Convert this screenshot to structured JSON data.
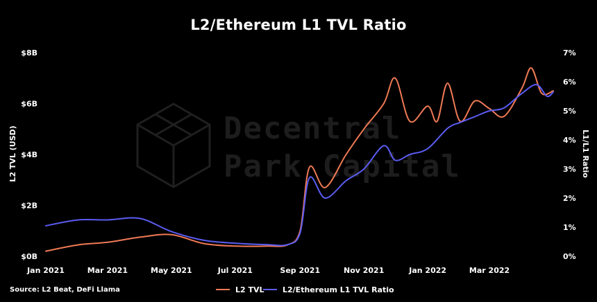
{
  "title": "L2/Ethereum L1 TVL Ratio",
  "source": "Source: L2 Beat, DeFi Llama",
  "watermark": {
    "line1": "Decentral",
    "line2": "Park Capital"
  },
  "colors": {
    "background": "#000000",
    "l2_tvl": "#f07a55",
    "ratio": "#5a5cf2",
    "text": "#ffffff",
    "watermark": "#1d1d1d"
  },
  "chart_data": {
    "type": "line",
    "title": "L2/Ethereum L1 TVL Ratio",
    "xlabel": "",
    "ylabel": "L2 TVL (USD)",
    "y2label": "L1/L1 Ratio",
    "x_ticks": [
      "Jan 2021",
      "Mar 2021",
      "May 2021",
      "Jul 2021",
      "Sep 2021",
      "Nov 2021",
      "Jan 2022",
      "Mar 2022"
    ],
    "y_ticks": [
      "$0B",
      "$2B",
      "$4B",
      "$6B",
      "$8B"
    ],
    "y2_ticks": [
      "0%",
      "1%",
      "2%",
      "3%",
      "4%",
      "5%",
      "6%",
      "7%"
    ],
    "ylim": [
      0,
      8
    ],
    "y2lim": [
      0,
      7
    ],
    "xlim": [
      "2021-01-01",
      "2022-05-01"
    ],
    "grid": false,
    "legend": "bottom",
    "series": [
      {
        "name": "L2 TVL",
        "axis": "left",
        "unit": "USD billions",
        "x": [
          "2021-01-01",
          "2021-02-01",
          "2021-03-01",
          "2021-04-01",
          "2021-05-01",
          "2021-06-01",
          "2021-07-01",
          "2021-08-01",
          "2021-08-20",
          "2021-09-01",
          "2021-09-10",
          "2021-09-25",
          "2021-10-15",
          "2021-11-01",
          "2021-11-20",
          "2021-12-01",
          "2021-12-15",
          "2022-01-01",
          "2022-01-10",
          "2022-01-20",
          "2022-02-01",
          "2022-02-15",
          "2022-03-01",
          "2022-03-15",
          "2022-04-01",
          "2022-04-10",
          "2022-04-20",
          "2022-05-01"
        ],
        "values": [
          0.2,
          0.45,
          0.55,
          0.75,
          0.85,
          0.5,
          0.4,
          0.4,
          0.45,
          1.0,
          3.5,
          2.7,
          4.0,
          5.0,
          6.0,
          7.0,
          5.3,
          5.9,
          5.3,
          6.8,
          5.3,
          6.1,
          5.8,
          5.5,
          6.6,
          7.4,
          6.4,
          6.5
        ]
      },
      {
        "name": "L2/Ethereum L1 TVL Ratio",
        "axis": "right",
        "unit": "percent",
        "x": [
          "2021-01-01",
          "2021-02-01",
          "2021-03-01",
          "2021-04-01",
          "2021-05-01",
          "2021-06-01",
          "2021-07-01",
          "2021-08-01",
          "2021-08-20",
          "2021-09-01",
          "2021-09-10",
          "2021-09-25",
          "2021-10-15",
          "2021-11-01",
          "2021-11-20",
          "2021-12-01",
          "2021-12-15",
          "2022-01-01",
          "2022-01-20",
          "2022-02-01",
          "2022-02-15",
          "2022-03-01",
          "2022-03-15",
          "2022-04-01",
          "2022-04-15",
          "2022-04-25",
          "2022-05-01"
        ],
        "values": [
          1.05,
          1.25,
          1.25,
          1.3,
          0.85,
          0.55,
          0.45,
          0.4,
          0.4,
          0.8,
          2.7,
          2.0,
          2.6,
          3.0,
          3.8,
          3.3,
          3.5,
          3.7,
          4.4,
          4.6,
          4.8,
          5.0,
          5.1,
          5.6,
          5.9,
          5.5,
          5.65
        ]
      }
    ]
  }
}
